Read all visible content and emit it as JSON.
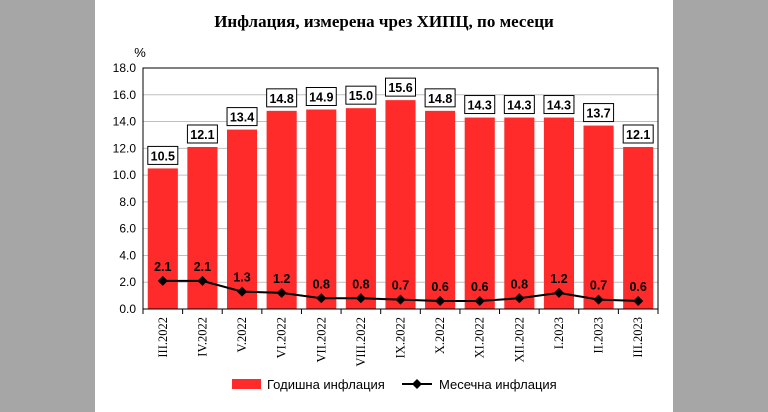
{
  "chart_data": {
    "type": "bar",
    "title": "Инфлация, измерена чрез ХИПЦ, по месеци",
    "unit": "%",
    "categories": [
      "III.2022",
      "IV.2022",
      "V.2022",
      "VI.2022",
      "VII.2022",
      "VIII.2022",
      "IX.2022",
      "X.2022",
      "XI.2022",
      "XII.2022",
      "I.2023",
      "II.2023",
      "III.2023"
    ],
    "series": [
      {
        "name": "Годишна инфлация",
        "type": "bar",
        "color": "#ff2a2a",
        "values": [
          10.5,
          12.1,
          13.4,
          14.8,
          14.9,
          15.0,
          15.6,
          14.8,
          14.3,
          14.3,
          14.3,
          13.7,
          12.1
        ]
      },
      {
        "name": "Месечна инфлация",
        "type": "line",
        "color": "#000000",
        "values": [
          2.1,
          2.1,
          1.3,
          1.2,
          0.8,
          0.8,
          0.7,
          0.6,
          0.6,
          0.8,
          1.2,
          0.7,
          0.6
        ]
      }
    ],
    "ylim": [
      0,
      18
    ],
    "yticks": [
      0.0,
      2.0,
      4.0,
      6.0,
      8.0,
      10.0,
      12.0,
      14.0,
      16.0,
      18.0
    ],
    "grid": "horizontal",
    "legend": "bottom"
  }
}
